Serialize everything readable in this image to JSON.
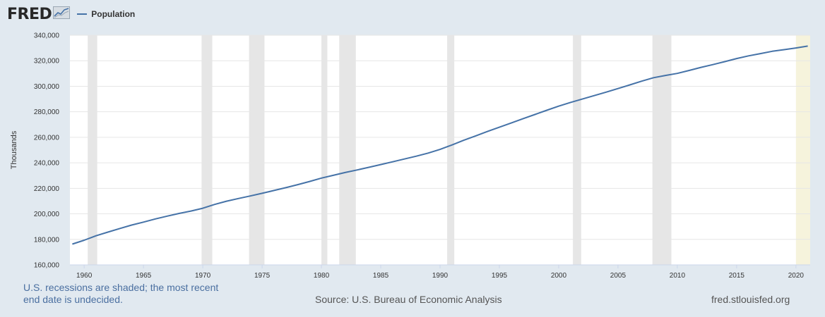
{
  "header": {
    "logo_text": "FRED",
    "logo_icon": "chart-trend-icon",
    "legend_label": "Population"
  },
  "footer": {
    "recession_note": "U.S. recessions are shaded; the most recent end date is undecided.",
    "source": "Source: U.S. Bureau of Economic Analysis",
    "site": "fred.stlouisfed.org"
  },
  "colors": {
    "background": "#e1e9f0",
    "plot": "#ffffff",
    "line": "#4572a7",
    "recession": "#e6e6e6",
    "undecided_recession": "#f6f3dc"
  },
  "chart_data": {
    "type": "line",
    "ylabel": "Thousands",
    "xlim": [
      1958.8,
      2021.2
    ],
    "ylim": [
      160000,
      340000
    ],
    "x_ticks": [
      1960,
      1965,
      1970,
      1975,
      1980,
      1985,
      1990,
      1995,
      2000,
      2005,
      2010,
      2015,
      2020
    ],
    "y_ticks": [
      160000,
      180000,
      200000,
      220000,
      240000,
      260000,
      280000,
      300000,
      320000,
      340000
    ],
    "grid": true,
    "recessions": [
      {
        "start": 1960.3,
        "end": 1961.1
      },
      {
        "start": 1969.9,
        "end": 1970.8
      },
      {
        "start": 1973.9,
        "end": 1975.2
      },
      {
        "start": 1980.0,
        "end": 1980.5
      },
      {
        "start": 1981.5,
        "end": 1982.9
      },
      {
        "start": 1990.6,
        "end": 1991.2
      },
      {
        "start": 2001.2,
        "end": 2001.9
      },
      {
        "start": 2007.9,
        "end": 2009.5
      }
    ],
    "undecided_recession": {
      "start": 2020.0,
      "end": 2021.2
    },
    "series": [
      {
        "name": "Population",
        "x": [
          1959.0,
          1960.0,
          1961.0,
          1962.0,
          1963.0,
          1964.0,
          1965.0,
          1966.0,
          1967.0,
          1968.0,
          1969.0,
          1970.0,
          1971.0,
          1972.0,
          1973.0,
          1974.0,
          1975.0,
          1976.0,
          1977.0,
          1978.0,
          1979.0,
          1980.0,
          1981.0,
          1982.0,
          1983.0,
          1984.0,
          1985.0,
          1986.0,
          1987.0,
          1988.0,
          1989.0,
          1990.0,
          1991.0,
          1992.0,
          1993.0,
          1994.0,
          1995.0,
          1996.0,
          1997.0,
          1998.0,
          1999.0,
          2000.0,
          2001.0,
          2002.0,
          2003.0,
          2004.0,
          2005.0,
          2006.0,
          2007.0,
          2008.0,
          2009.0,
          2010.0,
          2011.0,
          2012.0,
          2013.0,
          2014.0,
          2015.0,
          2016.0,
          2017.0,
          2018.0,
          2019.0,
          2020.0,
          2021.0
        ],
        "y": [
          176300,
          179300,
          182800,
          185700,
          188500,
          191200,
          193500,
          196000,
          198200,
          200300,
          202200,
          204400,
          207400,
          209900,
          212000,
          214000,
          216100,
          218300,
          220500,
          222900,
          225400,
          228000,
          230200,
          232400,
          234400,
          236500,
          238600,
          240800,
          243000,
          245200,
          247600,
          250500,
          254000,
          257700,
          261100,
          264600,
          267900,
          271200,
          274600,
          277900,
          281200,
          284400,
          287300,
          290000,
          292700,
          295400,
          298200,
          301100,
          304000,
          306700,
          308500,
          310100,
          312400,
          314800,
          317000,
          319300,
          321700,
          323800,
          325600,
          327400,
          328700,
          330000,
          331500
        ]
      }
    ]
  }
}
